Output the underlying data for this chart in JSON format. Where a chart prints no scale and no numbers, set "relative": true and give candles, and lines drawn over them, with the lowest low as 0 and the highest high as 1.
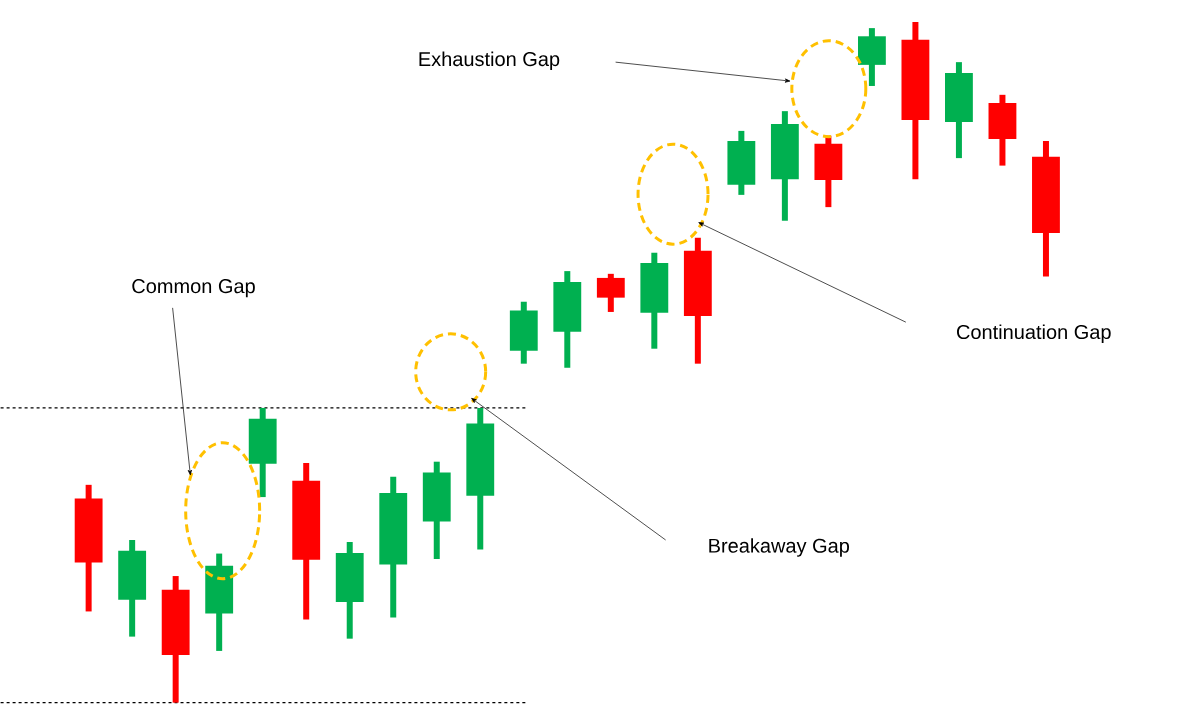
{
  "chart_data": {
    "type": "candlestick",
    "relative": true,
    "categories": [
      null,
      null,
      null,
      null,
      null,
      null,
      null,
      null,
      null,
      null,
      null,
      null,
      null,
      null,
      null,
      null,
      null,
      null,
      null,
      null,
      null,
      null,
      null
    ],
    "ohlc": [
      [
        0.3,
        0.32,
        0.134,
        0.206
      ],
      [
        0.151,
        0.239,
        0.097,
        0.223
      ],
      [
        0.166,
        0.186,
        0,
        0.07
      ],
      [
        0.131,
        0.219,
        0.076,
        0.201
      ],
      [
        0.351,
        0.433,
        0.302,
        0.417
      ],
      [
        0.326,
        0.352,
        0.122,
        0.21
      ],
      [
        0.148,
        0.236,
        0.094,
        0.22
      ],
      [
        0.203,
        0.332,
        0.125,
        0.308
      ],
      [
        0.266,
        0.354,
        0.211,
        0.338
      ],
      [
        0.304,
        0.433,
        0.225,
        0.41
      ],
      [
        0.517,
        0.589,
        0.498,
        0.576
      ],
      [
        0.545,
        0.634,
        0.492,
        0.618
      ],
      [
        0.624,
        0.63,
        0.574,
        0.595
      ],
      [
        0.573,
        0.661,
        0.52,
        0.646
      ],
      [
        0.664,
        0.683,
        0.498,
        0.568
      ],
      [
        0.761,
        0.84,
        0.746,
        0.825
      ],
      [
        0.769,
        0.869,
        0.708,
        0.85
      ],
      [
        0.821,
        0.833,
        0.728,
        0.768
      ],
      [
        0.937,
        0.991,
        0.906,
        0.979
      ],
      [
        0.974,
        1,
        0.769,
        0.856
      ],
      [
        0.853,
        0.941,
        0.8,
        0.925
      ],
      [
        0.881,
        0.893,
        0.789,
        0.828
      ],
      [
        0.802,
        0.825,
        0.626,
        0.69
      ]
    ],
    "colors": [
      "#ff0000",
      "#00b050",
      "#ff0000",
      "#00b050",
      "#00b050",
      "#ff0000",
      "#00b050",
      "#00b050",
      "#00b050",
      "#00b050",
      "#00b050",
      "#00b050",
      "#ff0000",
      "#00b050",
      "#ff0000",
      "#00b050",
      "#00b050",
      "#ff0000",
      "#00b050",
      "#ff0000",
      "#00b050",
      "#ff0000",
      "#ff0000"
    ],
    "ref_lines": [
      {
        "axis": "y",
        "value": 0.433,
        "color": "#000000",
        "line_style": "dashed"
      },
      {
        "axis": "y",
        "value": 0,
        "color": "#000000",
        "line_style": "dashed"
      }
    ],
    "annotations": [
      "Common Gap",
      "Breakaway Gap",
      "Continuation Gap",
      "Exhaustion Gap"
    ]
  }
}
